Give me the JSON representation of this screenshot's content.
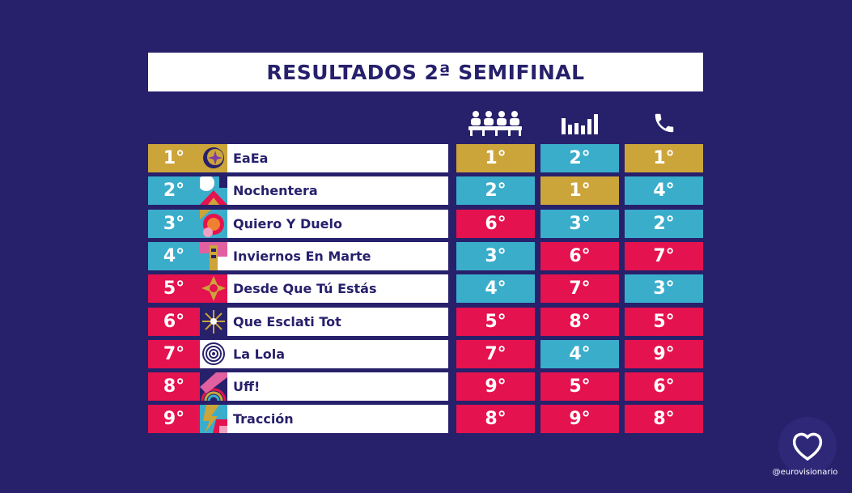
{
  "title": "RESULTADOS 2ª SEMIFINAL",
  "colors": {
    "background": "#27206b",
    "gold": "#cca53a",
    "blue": "#3aadcb",
    "red": "#e4124e",
    "white": "#ffffff"
  },
  "columns": [
    {
      "icon": "jury-icon"
    },
    {
      "icon": "demoscopic-poll-icon"
    },
    {
      "icon": "phone-icon"
    }
  ],
  "rows": [
    {
      "position": "1°",
      "song": "EaEa",
      "jury": "1°",
      "poll": "2°",
      "televote": "1°",
      "thumb": "eaea-artwork",
      "colors": {
        "position": "#cca53a",
        "jury": "#cca53a",
        "poll": "#3aadcb",
        "televote": "#cca53a"
      }
    },
    {
      "position": "2°",
      "song": "Nochentera",
      "jury": "2°",
      "poll": "1°",
      "televote": "4°",
      "thumb": "nochentera-artwork",
      "colors": {
        "position": "#3aadcb",
        "jury": "#3aadcb",
        "poll": "#cca53a",
        "televote": "#3aadcb"
      }
    },
    {
      "position": "3°",
      "song": "Quiero Y Duelo",
      "jury": "6°",
      "poll": "3°",
      "televote": "2°",
      "thumb": "quiero-y-duelo-artwork",
      "colors": {
        "position": "#3aadcb",
        "jury": "#e4124e",
        "poll": "#3aadcb",
        "televote": "#3aadcb"
      }
    },
    {
      "position": "4°",
      "song": "Inviernos En Marte",
      "jury": "3°",
      "poll": "6°",
      "televote": "7°",
      "thumb": "inviernos-en-marte-artwork",
      "colors": {
        "position": "#3aadcb",
        "jury": "#3aadcb",
        "poll": "#e4124e",
        "televote": "#e4124e"
      }
    },
    {
      "position": "5°",
      "song": "Desde Que Tú Estás",
      "jury": "4°",
      "poll": "7°",
      "televote": "3°",
      "thumb": "desde-que-tu-estas-artwork",
      "colors": {
        "position": "#e4124e",
        "jury": "#3aadcb",
        "poll": "#e4124e",
        "televote": "#3aadcb"
      }
    },
    {
      "position": "6°",
      "song": "Que Esclati Tot",
      "jury": "5°",
      "poll": "8°",
      "televote": "5°",
      "thumb": "que-esclati-tot-artwork",
      "colors": {
        "position": "#e4124e",
        "jury": "#e4124e",
        "poll": "#e4124e",
        "televote": "#e4124e"
      }
    },
    {
      "position": "7°",
      "song": "La Lola",
      "jury": "7°",
      "poll": "4°",
      "televote": "9°",
      "thumb": "la-lola-artwork",
      "colors": {
        "position": "#e4124e",
        "jury": "#e4124e",
        "poll": "#3aadcb",
        "televote": "#e4124e"
      }
    },
    {
      "position": "8°",
      "song": "Uff!",
      "jury": "9°",
      "poll": "5°",
      "televote": "6°",
      "thumb": "uff-artwork",
      "colors": {
        "position": "#e4124e",
        "jury": "#e4124e",
        "poll": "#e4124e",
        "televote": "#e4124e"
      }
    },
    {
      "position": "9°",
      "song": "Tracción",
      "jury": "8°",
      "poll": "9°",
      "televote": "8°",
      "thumb": "traccion-artwork",
      "colors": {
        "position": "#e4124e",
        "jury": "#e4124e",
        "poll": "#e4124e",
        "televote": "#e4124e"
      }
    }
  ],
  "brand": {
    "handle": "@eurovisionario",
    "logo": "eurovisionario-logo-icon"
  }
}
